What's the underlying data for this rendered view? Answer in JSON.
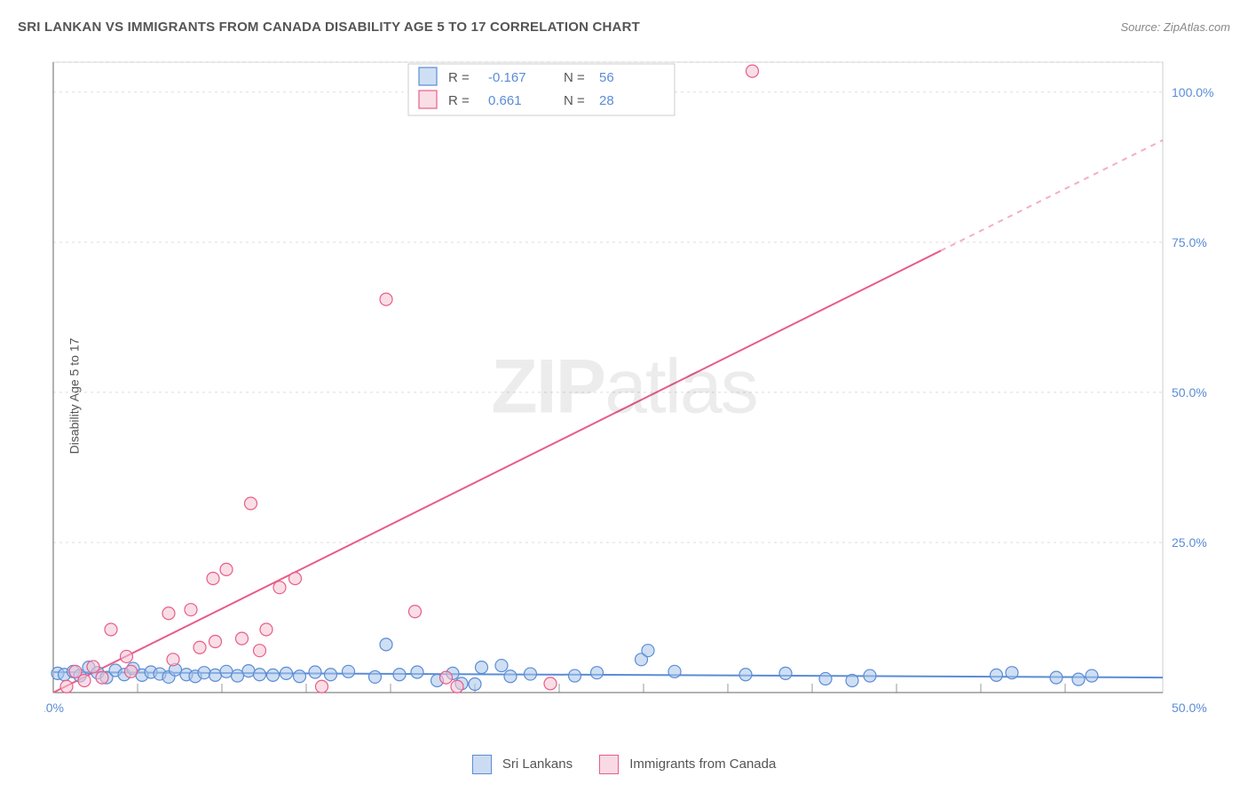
{
  "header": {
    "title": "SRI LANKAN VS IMMIGRANTS FROM CANADA DISABILITY AGE 5 TO 17 CORRELATION CHART",
    "source": "Source: ZipAtlas.com"
  },
  "watermark": {
    "left": "ZIP",
    "right": "atlas"
  },
  "chart": {
    "type": "scatter",
    "ylabel": "Disability Age 5 to 17",
    "xlim": [
      0,
      50
    ],
    "ylim": [
      0,
      105
    ],
    "yticks": [
      25,
      50,
      75,
      100
    ],
    "ytick_labels": [
      "25.0%",
      "50.0%",
      "75.0%",
      "100.0%"
    ],
    "x_origin_label": "0.0%",
    "x_max_label": "50.0%",
    "xtick_positions": [
      3.8,
      7.6,
      11.4,
      15.2,
      19.0,
      22.8,
      26.6,
      30.4,
      34.2,
      38.0,
      41.8,
      45.6
    ],
    "plot_background": "#ffffff",
    "colors": {
      "grid": "#dddddd",
      "axis": "#666666",
      "series_blue_stroke": "#5b8cd6",
      "series_blue_fill": "#a8c5ea",
      "series_pink_stroke": "#e85d8a",
      "series_pink_fill": "#f5c2d2",
      "tick_label": "#5b8cd6"
    },
    "marker_radius": 7,
    "series": [
      {
        "name": "Sri Lankans",
        "color_key": "blue",
        "R": -0.167,
        "N": 56,
        "trend": {
          "x1": 0,
          "y1": 3.4,
          "x2": 50,
          "y2": 2.5
        },
        "points": [
          [
            0.2,
            3.2
          ],
          [
            0.5,
            3.0
          ],
          [
            0.9,
            3.5
          ],
          [
            1.2,
            2.8
          ],
          [
            1.6,
            4.2
          ],
          [
            2.0,
            3.3
          ],
          [
            2.4,
            2.5
          ],
          [
            2.8,
            3.7
          ],
          [
            3.2,
            3.0
          ],
          [
            3.6,
            4.0
          ],
          [
            4.0,
            2.9
          ],
          [
            4.4,
            3.4
          ],
          [
            4.8,
            3.1
          ],
          [
            5.2,
            2.6
          ],
          [
            5.5,
            3.8
          ],
          [
            6.0,
            3.0
          ],
          [
            6.4,
            2.7
          ],
          [
            6.8,
            3.3
          ],
          [
            7.3,
            2.9
          ],
          [
            7.8,
            3.5
          ],
          [
            8.3,
            2.8
          ],
          [
            8.8,
            3.6
          ],
          [
            9.3,
            3.0
          ],
          [
            9.9,
            2.9
          ],
          [
            10.5,
            3.2
          ],
          [
            11.1,
            2.7
          ],
          [
            11.8,
            3.4
          ],
          [
            12.5,
            3.0
          ],
          [
            13.3,
            3.5
          ],
          [
            14.5,
            2.6
          ],
          [
            15.0,
            8.0
          ],
          [
            15.6,
            3.0
          ],
          [
            16.4,
            3.4
          ],
          [
            17.3,
            2.0
          ],
          [
            18.0,
            3.2
          ],
          [
            18.4,
            1.5
          ],
          [
            19.0,
            1.4
          ],
          [
            19.3,
            4.2
          ],
          [
            20.2,
            4.5
          ],
          [
            20.6,
            2.7
          ],
          [
            21.5,
            3.1
          ],
          [
            23.5,
            2.8
          ],
          [
            24.5,
            3.3
          ],
          [
            26.5,
            5.5
          ],
          [
            26.8,
            7.0
          ],
          [
            28.0,
            3.5
          ],
          [
            31.2,
            3.0
          ],
          [
            33.0,
            3.2
          ],
          [
            34.8,
            2.3
          ],
          [
            36.0,
            2.0
          ],
          [
            36.8,
            2.8
          ],
          [
            42.5,
            2.9
          ],
          [
            43.2,
            3.3
          ],
          [
            45.2,
            2.5
          ],
          [
            46.8,
            2.8
          ],
          [
            46.2,
            2.2
          ]
        ]
      },
      {
        "name": "Immigrants from Canada",
        "color_key": "pink",
        "R": 0.661,
        "N": 28,
        "trend": {
          "x1": 0,
          "y1": 0,
          "x2": 50,
          "y2": 92,
          "solid_end_x": 40,
          "solid_end_y": 73.6
        },
        "points": [
          [
            0.6,
            1.0
          ],
          [
            1.0,
            3.5
          ],
          [
            1.4,
            2.0
          ],
          [
            1.8,
            4.3
          ],
          [
            2.2,
            2.5
          ],
          [
            2.6,
            10.5
          ],
          [
            3.3,
            6.0
          ],
          [
            3.5,
            3.5
          ],
          [
            5.2,
            13.2
          ],
          [
            5.4,
            5.5
          ],
          [
            6.2,
            13.8
          ],
          [
            6.6,
            7.5
          ],
          [
            7.2,
            19.0
          ],
          [
            7.3,
            8.5
          ],
          [
            7.8,
            20.5
          ],
          [
            8.5,
            9.0
          ],
          [
            8.9,
            31.5
          ],
          [
            9.3,
            7.0
          ],
          [
            9.6,
            10.5
          ],
          [
            10.2,
            17.5
          ],
          [
            10.9,
            19.0
          ],
          [
            12.1,
            1.0
          ],
          [
            15.0,
            65.5
          ],
          [
            16.3,
            13.5
          ],
          [
            17.7,
            2.5
          ],
          [
            18.2,
            1.0
          ],
          [
            22.4,
            1.5
          ],
          [
            31.5,
            103.5
          ]
        ]
      }
    ],
    "legend_top": {
      "rows": [
        {
          "swatch": "blue",
          "r": "-0.167",
          "n": "56"
        },
        {
          "swatch": "pink",
          "r": "0.661",
          "n": "28"
        }
      ]
    },
    "legend_bottom": [
      {
        "swatch": "blue",
        "label": "Sri Lankans"
      },
      {
        "swatch": "pink",
        "label": "Immigrants from Canada"
      }
    ]
  }
}
